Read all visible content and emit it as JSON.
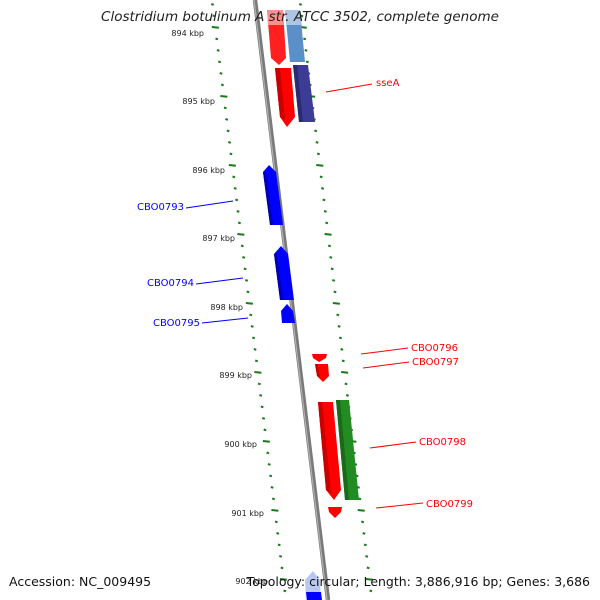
{
  "title": "Clostridium botulinum A str. ATCC 3502, complete genome",
  "footer": {
    "accession": "Accession: NC_009495",
    "topology": "Topology: circular; Length: 3,886,916 bp; Genes: 3,686"
  },
  "ticks": [
    "894 kbp",
    "895 kbp",
    "896 kbp",
    "897 kbp",
    "898 kbp",
    "899 kbp",
    "900 kbp",
    "901 kbp",
    "902 kbp"
  ],
  "genes": [
    {
      "label": "sseA",
      "color": "#ff0000"
    },
    {
      "label": "CBO0793",
      "color": "#0000ff"
    },
    {
      "label": "CBO0794",
      "color": "#0000ff"
    },
    {
      "label": "CBO0795",
      "color": "#0000ff"
    },
    {
      "label": "CBO0796",
      "color": "#ff0000"
    },
    {
      "label": "CBO0797",
      "color": "#ff0000"
    },
    {
      "label": "CBO0798",
      "color": "#ff0000"
    },
    {
      "label": "CBO0799",
      "color": "#ff0000"
    }
  ],
  "colors": {
    "forward_cds": "#ff0000",
    "reverse_cds": "#0000ff",
    "rna": "#228b22",
    "paired": "#3c3c96",
    "backbone": "#808080",
    "ticks": "#1a7a1a"
  }
}
